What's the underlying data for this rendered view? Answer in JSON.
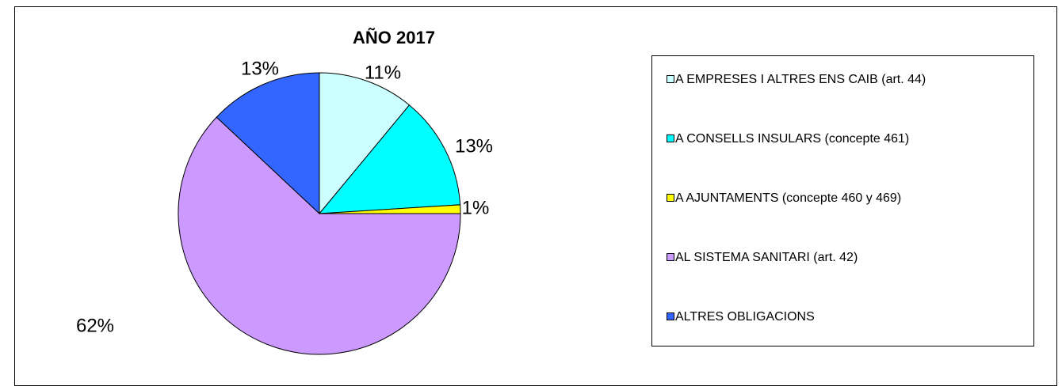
{
  "chart_data": {
    "type": "pie",
    "title": "AÑO 2017",
    "categories": [
      "A EMPRESES I ALTRES ENS CAIB (art. 44)",
      "A CONSELLS INSULARS (concepte 461)",
      "A AJUNTAMENTS (concepte 460 y 469)",
      "AL SISTEMA SANITARI (art. 42)",
      "ALTRES OBLIGACIONS"
    ],
    "values": [
      11,
      13,
      1,
      62,
      13
    ],
    "value_labels": [
      "11%",
      "13%",
      "1%",
      "62%",
      "13%"
    ],
    "colors": [
      "#ccffff",
      "#00ffff",
      "#ffff00",
      "#cc99ff",
      "#3366ff"
    ],
    "legend": "right"
  }
}
